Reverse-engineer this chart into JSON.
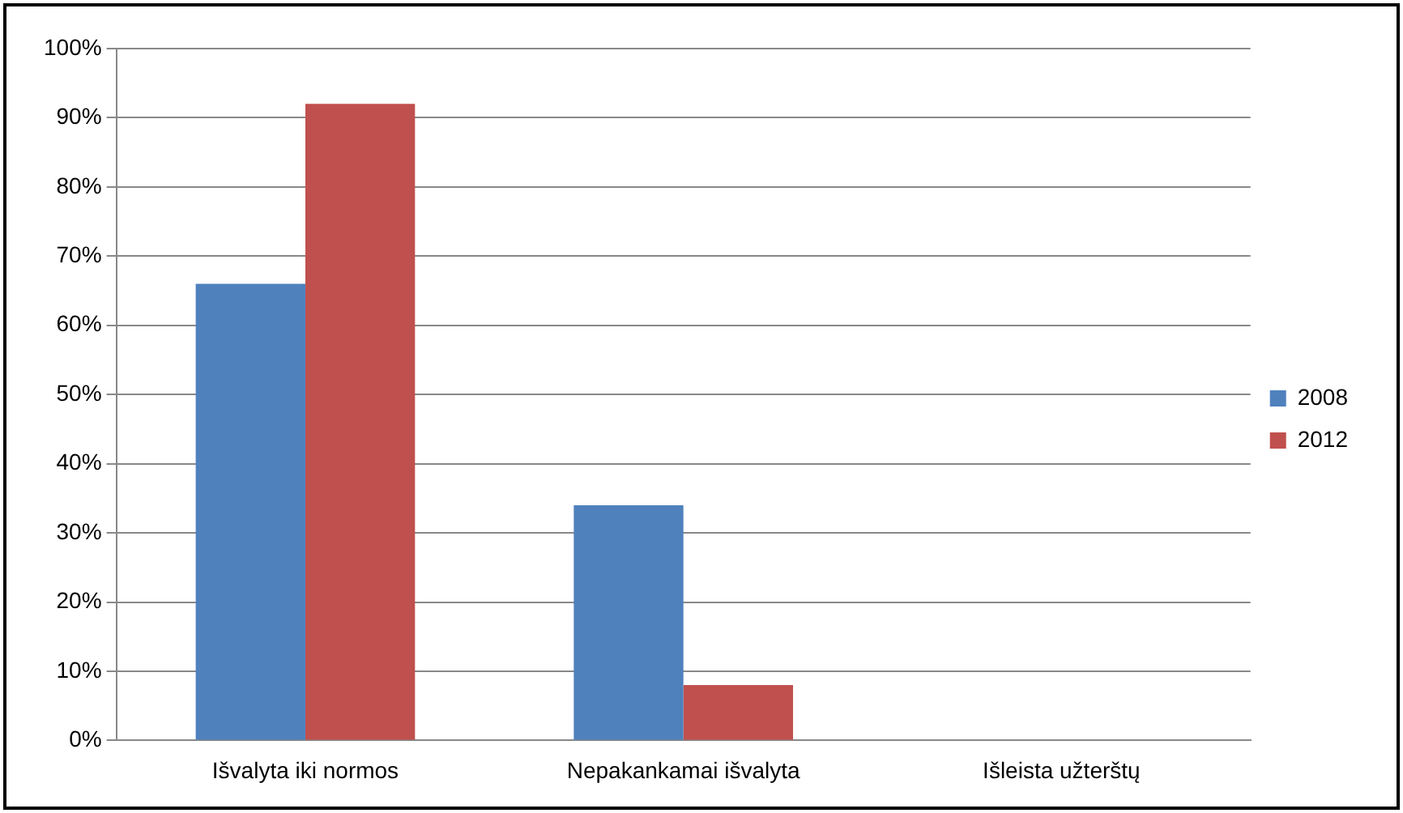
{
  "chart_data": {
    "type": "bar",
    "categories": [
      "Išvalyta iki normos",
      "Nepakankamai išvalyta",
      "Išleista užterštų"
    ],
    "series": [
      {
        "name": "2008",
        "color": "#4f81bd",
        "values": [
          66,
          34,
          0
        ]
      },
      {
        "name": "2012",
        "color": "#c0504d",
        "values": [
          92,
          8,
          0
        ]
      }
    ],
    "ylim": [
      0,
      100
    ],
    "yticks": [
      {
        "value": 0,
        "label": "0%"
      },
      {
        "value": 10,
        "label": "10%"
      },
      {
        "value": 20,
        "label": "20%"
      },
      {
        "value": 30,
        "label": "30%"
      },
      {
        "value": 40,
        "label": "40%"
      },
      {
        "value": 50,
        "label": "50%"
      },
      {
        "value": 60,
        "label": "60%"
      },
      {
        "value": 70,
        "label": "70%"
      },
      {
        "value": 80,
        "label": "80%"
      },
      {
        "value": 90,
        "label": "90%"
      },
      {
        "value": 100,
        "label": "100%"
      }
    ],
    "grid": "y",
    "legend": "right"
  }
}
